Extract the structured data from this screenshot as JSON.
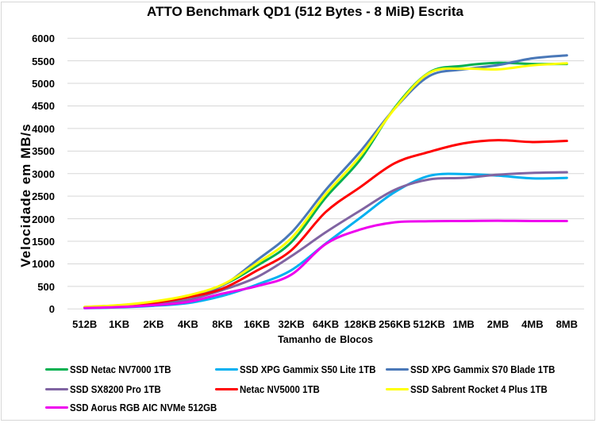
{
  "chart_data": {
    "type": "line",
    "title": "ATTO Benchmark QD1 (512 Bytes - 8 MiB) Escrita",
    "xlabel": "Tamanho de Blocos",
    "ylabel": "Velocidade em MB/s",
    "categories": [
      "512B",
      "1KB",
      "2KB",
      "4KB",
      "8KB",
      "16KB",
      "32KB",
      "64KB",
      "128KB",
      "256KB",
      "512KB",
      "1MB",
      "2MB",
      "4MB",
      "8MB"
    ],
    "ylim": [
      0,
      6000
    ],
    "ytick_step": 500,
    "grid": true,
    "smooth": true,
    "legend_position": "bottom",
    "gridline_color": "#d7d7d7",
    "series": [
      {
        "name": "SSD Netac NV7000 1TB",
        "color": "#00b050",
        "values": [
          42,
          80,
          155,
          280,
          525,
          955,
          1480,
          2470,
          3310,
          4460,
          5240,
          5390,
          5455,
          5430,
          5430
        ]
      },
      {
        "name": "SSD XPG Gammix S50 Lite 1TB",
        "color": "#00b0f0",
        "values": [
          18,
          36,
          70,
          130,
          290,
          540,
          860,
          1450,
          2020,
          2590,
          2950,
          2990,
          2955,
          2895,
          2905
        ]
      },
      {
        "name": "SSD XPG Gammix S70 Blade 1TB",
        "color": "#4a78b8",
        "values": [
          40,
          77,
          150,
          270,
          520,
          1080,
          1690,
          2640,
          3490,
          4440,
          5160,
          5310,
          5405,
          5555,
          5620
        ]
      },
      {
        "name": "SSD SX8200 Pro 1TB",
        "color": "#8064a2",
        "values": [
          28,
          55,
          108,
          205,
          420,
          705,
          1170,
          1700,
          2180,
          2640,
          2870,
          2905,
          2975,
          3015,
          3030
        ]
      },
      {
        "name": "Netac NV5000 1TB",
        "color": "#ff0000",
        "values": [
          36,
          70,
          135,
          260,
          450,
          850,
          1300,
          2150,
          2700,
          3230,
          3480,
          3670,
          3740,
          3700,
          3725
        ]
      },
      {
        "name": "SSD Sabrent Rocket 4 Plus 1TB",
        "color": "#ffff00",
        "values": [
          45,
          85,
          165,
          300,
          540,
          1010,
          1570,
          2545,
          3390,
          4440,
          5230,
          5325,
          5310,
          5400,
          5445
        ]
      },
      {
        "name": "SSD Aorus RGB AIC NVMe 512GB",
        "color": "#ee00ee",
        "values": [
          21,
          42,
          84,
          155,
          340,
          505,
          760,
          1440,
          1760,
          1920,
          1945,
          1950,
          1955,
          1950,
          1950
        ]
      }
    ]
  }
}
